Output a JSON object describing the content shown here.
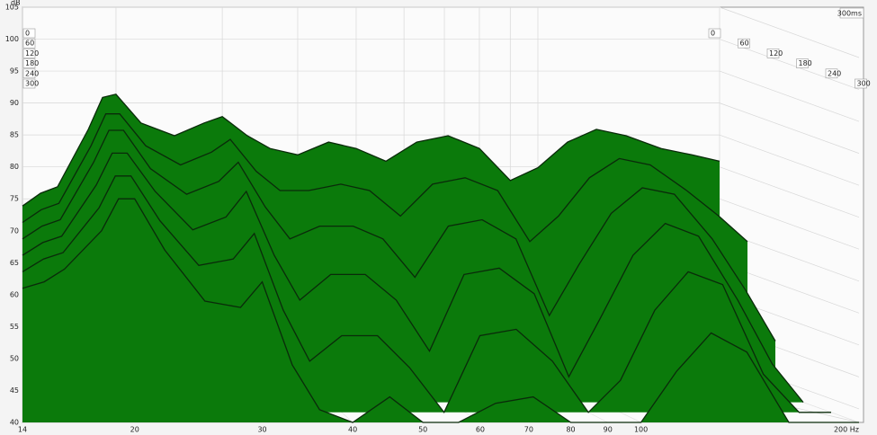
{
  "chart_data": {
    "type": "waterfall",
    "y_label": "dB",
    "z_label": "300ms",
    "xscale": "log",
    "grid": true,
    "color": "#0b7a0b",
    "edge_color": "#0a2a0a",
    "xlim": [
      14,
      200
    ],
    "ylim": [
      40,
      105
    ],
    "xticks": [
      14,
      20,
      30,
      40,
      50,
      60,
      70,
      80,
      90,
      100,
      {
        "value": 200,
        "label": "200 Hz"
      }
    ],
    "yticks": [
      40,
      45,
      50,
      55,
      60,
      65,
      70,
      75,
      80,
      85,
      90,
      95,
      100,
      105
    ],
    "x": [
      14,
      15,
      16,
      18,
      19,
      20,
      22,
      25,
      28,
      30,
      33,
      36,
      40,
      45,
      50,
      56,
      63,
      71,
      80,
      90,
      100,
      112,
      125,
      140,
      160,
      180,
      200
    ],
    "series": [
      {
        "name": "0",
        "values": [
          66,
          68,
          69,
          78,
          83,
          83.5,
          79,
          77,
          79,
          80,
          77,
          75,
          74,
          76,
          75,
          73,
          76,
          77,
          75,
          70,
          72,
          76,
          78,
          77,
          75,
          74,
          73
        ]
      },
      {
        "name": "60",
        "values": [
          65,
          67,
          68,
          77,
          82,
          82,
          77,
          74,
          76,
          78,
          73,
          70,
          70,
          71,
          70,
          66,
          71,
          72,
          70,
          62,
          66,
          72,
          75,
          74,
          70,
          66,
          62
        ]
      },
      {
        "name": "120",
        "values": [
          64,
          66,
          67,
          76,
          81,
          81,
          75,
          71,
          73,
          76,
          69,
          64,
          66,
          66,
          64,
          58,
          66,
          67,
          64,
          52,
          60,
          68,
          72,
          71,
          64,
          56,
          48
        ]
      },
      {
        "name": "180",
        "values": [
          63,
          65,
          66,
          74,
          79,
          79,
          73,
          67,
          69,
          73,
          63,
          56,
          60,
          60,
          56,
          48,
          60,
          61,
          57,
          44,
          53,
          63,
          68,
          66,
          56,
          46,
          40
        ]
      },
      {
        "name": "240",
        "values": [
          62,
          64,
          65,
          72,
          77,
          77,
          70,
          63,
          64,
          68,
          56,
          48,
          52,
          52,
          47,
          40,
          52,
          53,
          48,
          40,
          45,
          56,
          62,
          60,
          46,
          40,
          40
        ]
      },
      {
        "name": "300",
        "values": [
          61,
          62,
          64,
          70,
          75,
          75,
          67,
          59,
          58,
          62,
          49,
          42,
          40,
          44,
          40,
          40,
          43,
          44,
          40,
          40,
          40,
          48,
          54,
          51,
          40,
          40,
          40
        ]
      }
    ]
  }
}
